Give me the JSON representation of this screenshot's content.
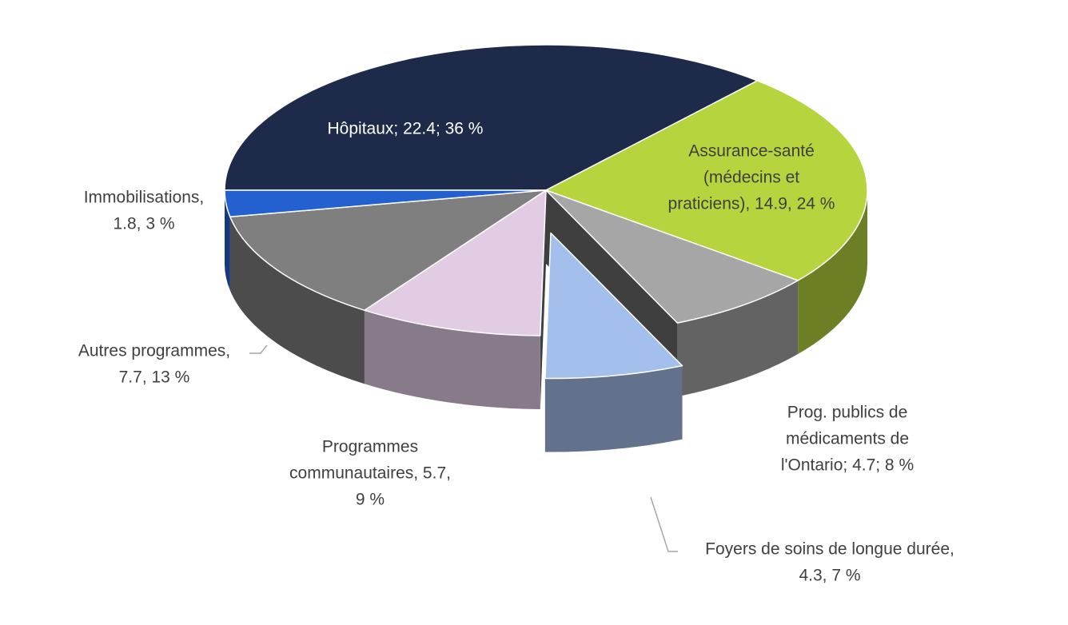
{
  "chart_data": {
    "type": "pie",
    "values": [
      22.4,
      14.9,
      4.7,
      4.3,
      5.7,
      7.7,
      1.8
    ],
    "value_labels": [
      [
        "Hôpitaux; 22.4; 36 %"
      ],
      [
        "Assurance-santé",
        "(médecins et",
        "praticiens), 14.9, 24 %"
      ],
      [
        "Prog. publics de",
        "médicaments de",
        "l'Ontario; 4.7; 8 %"
      ],
      [
        "Foyers de soins de longue durée,",
        "4.3, 7 %"
      ],
      [
        "Programmes",
        "communautaires, 5.7,",
        "9 %"
      ],
      [
        "Autres programmes,",
        "7.7, 13 %"
      ],
      [
        "Immobilisations,",
        "1.8, 3 %"
      ]
    ],
    "colors": [
      "#1e2a4a",
      "#b6d43e",
      "#a6a6a6",
      "#a3bfeb",
      "#e2cce4",
      "#7f7f7f",
      "#2360d0"
    ],
    "explode": [
      false,
      false,
      false,
      true,
      false,
      false,
      false
    ]
  }
}
